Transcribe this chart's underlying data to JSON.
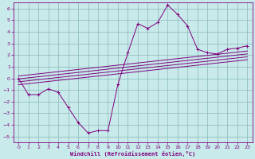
{
  "xlabel": "Windchill (Refroidissement éolien,°C)",
  "bg_color": "#c8eaea",
  "grid_color": "#8ab8b8",
  "line_color": "#800080",
  "xlim": [
    -0.5,
    23.5
  ],
  "ylim": [
    -5.5,
    6.5
  ],
  "xticks": [
    0,
    1,
    2,
    3,
    4,
    5,
    6,
    7,
    8,
    9,
    10,
    11,
    12,
    13,
    14,
    15,
    16,
    17,
    18,
    19,
    20,
    21,
    22,
    23
  ],
  "yticks": [
    -5,
    -4,
    -3,
    -2,
    -1,
    0,
    1,
    2,
    3,
    4,
    5,
    6
  ],
  "main_x": [
    0,
    1,
    2,
    3,
    4,
    5,
    6,
    7,
    8,
    9,
    10,
    11,
    12,
    13,
    14,
    15,
    16,
    17,
    18,
    19,
    20,
    21,
    22,
    23
  ],
  "main_y": [
    0,
    -1.4,
    -1.4,
    -0.9,
    -1.2,
    -2.5,
    -3.8,
    -4.7,
    -4.5,
    -4.5,
    -0.5,
    2.2,
    4.7,
    4.3,
    4.8,
    6.3,
    5.5,
    4.5,
    2.5,
    2.2,
    2.1,
    2.5,
    2.6,
    2.8
  ],
  "reg_lines": [
    {
      "x0": 0,
      "y0": -0.05,
      "x1": 23,
      "y1": 2.1
    },
    {
      "x0": 0,
      "y0": -0.3,
      "x1": 23,
      "y1": 1.85
    },
    {
      "x0": 0,
      "y0": 0.2,
      "x1": 23,
      "y1": 2.35
    },
    {
      "x0": 0,
      "y0": -0.55,
      "x1": 23,
      "y1": 1.6
    }
  ]
}
